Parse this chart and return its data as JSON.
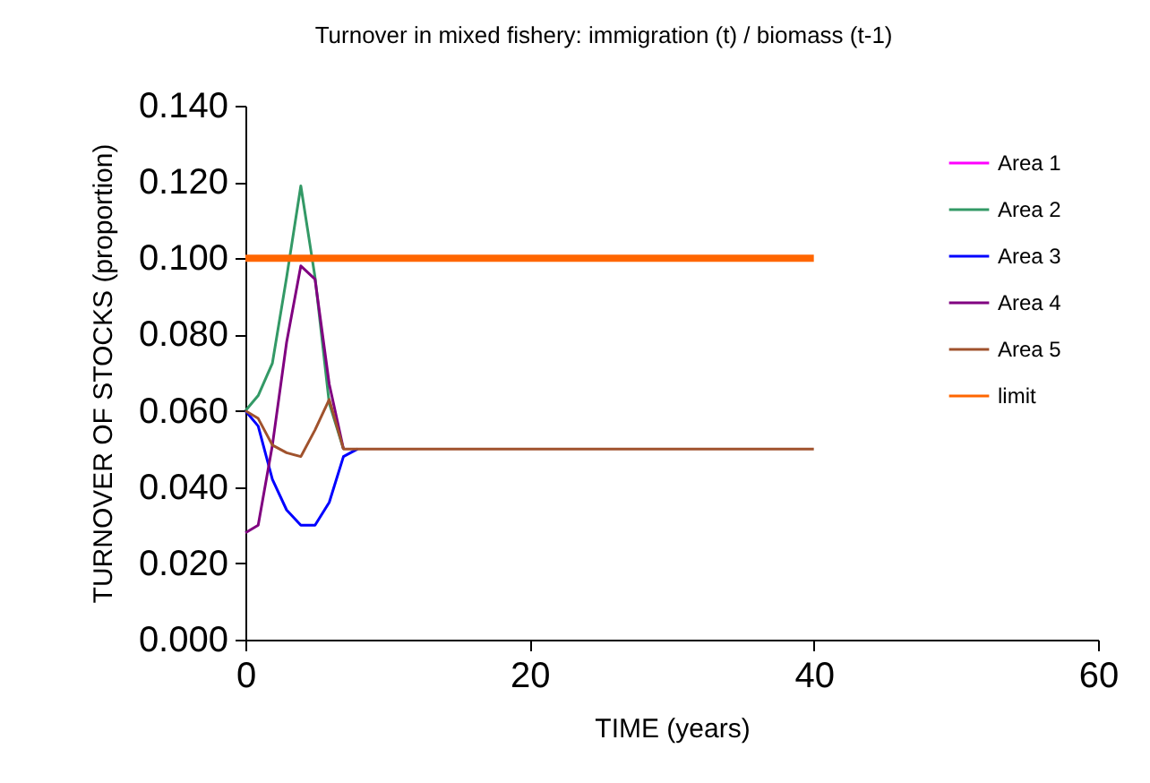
{
  "chart_data": {
    "type": "line",
    "title": "Turnover in mixed fishery: immigration (t) / biomass (t-1)",
    "xlabel": "TIME (years)",
    "ylabel": "TURNOVER OF STOCKS (proportion)",
    "x": [
      0,
      0.9,
      1.9,
      2.9,
      3.9,
      4.9,
      5.9,
      6.9,
      7.9,
      40
    ],
    "series": [
      {
        "name": "Area 1",
        "color": "#ff00ff",
        "values": [
          null,
          null,
          null,
          null,
          null,
          null,
          null,
          null,
          null,
          null
        ]
      },
      {
        "name": "Area 2",
        "color": "#339966",
        "values": [
          0.06,
          0.064,
          0.0725,
          0.095,
          0.119,
          0.095,
          0.062,
          0.05,
          null,
          null
        ]
      },
      {
        "name": "Area 3",
        "color": "#0000ff",
        "values": [
          0.06,
          0.056,
          0.042,
          0.034,
          0.03,
          0.03,
          0.036,
          0.048,
          0.05,
          null
        ]
      },
      {
        "name": "Area 4",
        "color": "#800080",
        "values": [
          0.028,
          0.03,
          0.051,
          0.078,
          0.098,
          0.0945,
          0.067,
          0.05,
          null,
          null
        ]
      },
      {
        "name": "Area 5",
        "color": "#a0522d",
        "values": [
          0.06,
          0.058,
          0.051,
          0.049,
          0.048,
          0.055,
          0.063,
          0.05,
          0.05,
          0.05
        ]
      }
    ],
    "ref_lines": [
      {
        "axis": "y",
        "value": 0.1,
        "label": "limit",
        "color": "#ff6600"
      }
    ],
    "xlim": [
      0,
      60
    ],
    "xticks": [
      0,
      20,
      40,
      60
    ],
    "ylim": [
      0,
      0.14
    ],
    "yticks": [
      {
        "value": 0,
        "label": "0.000"
      },
      {
        "value": 0.02,
        "label": "0.020"
      },
      {
        "value": 0.04,
        "label": "0.040"
      },
      {
        "value": 0.06,
        "label": "0.060"
      },
      {
        "value": 0.08,
        "label": "0.080"
      },
      {
        "value": 0.1,
        "label": "0.100"
      },
      {
        "value": 0.12,
        "label": "0.120"
      },
      {
        "value": 0.14,
        "label": "0.140"
      }
    ],
    "grid": false,
    "legend": "right",
    "marker": "none"
  }
}
